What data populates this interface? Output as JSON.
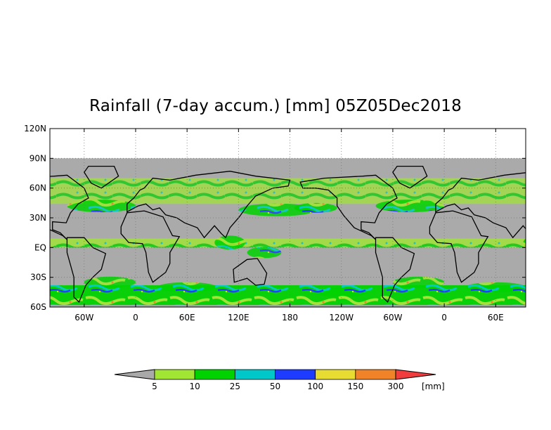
{
  "title": "Rainfall (7-day accum.) [mm] 05Z05Dec2018",
  "map": {
    "lat_ticks": [
      "120N",
      "90N",
      "60N",
      "30N",
      "EQ",
      "30S",
      "60S"
    ],
    "lon_ticks": [
      "60W",
      "0",
      "60E",
      "120E",
      "180",
      "120W",
      "60W",
      "0",
      "60E"
    ],
    "lon_range": [
      -100,
      455
    ],
    "lat_range": [
      -60,
      120
    ],
    "data_lat_range": [
      -60,
      90
    ],
    "no_data_color": "#aaaaaa",
    "coastline_color": "#000000",
    "grid": "dotted"
  },
  "colorbar": {
    "unit": "[mm]",
    "labels": [
      "5",
      "10",
      "25",
      "50",
      "100",
      "150",
      "300"
    ],
    "colors": [
      "#a9a9a9",
      "#a0e632",
      "#00d200",
      "#00c8c8",
      "#1e3cff",
      "#e6dc32",
      "#f08228",
      "#f03c3c"
    ]
  }
}
